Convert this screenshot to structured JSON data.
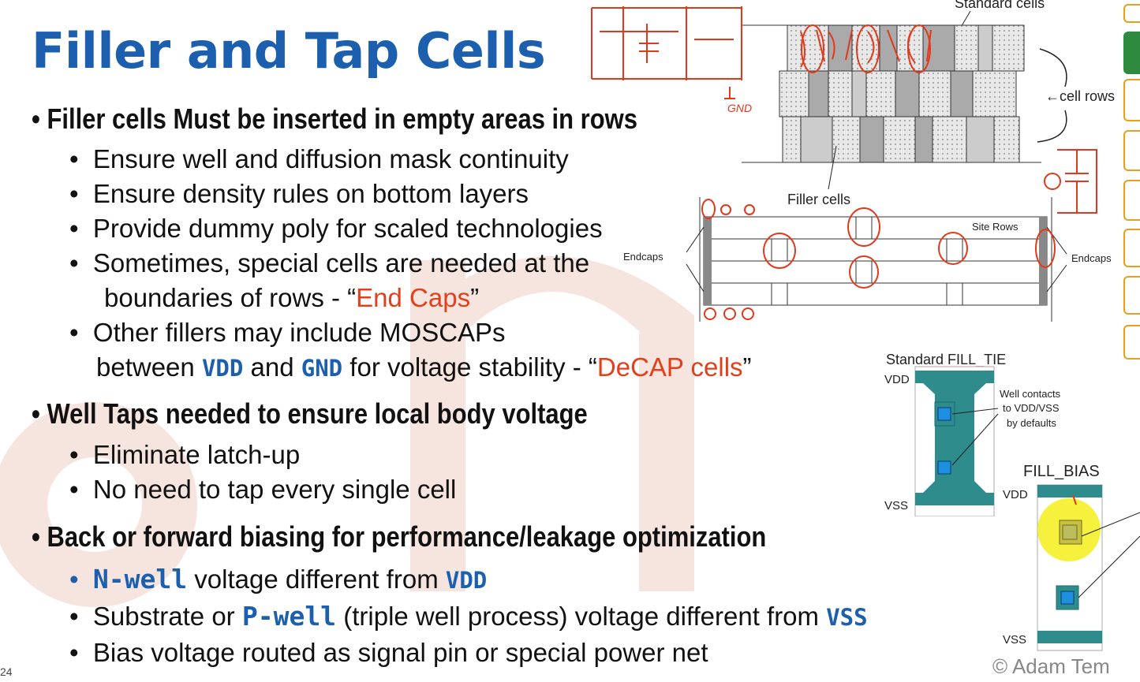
{
  "slide": {
    "title": "Filler and Tap Cells",
    "number": "24",
    "copyright": "© Adam Tem"
  },
  "bullets": {
    "filler_heading": "Filler cells Must be inserted in empty areas in rows",
    "filler_items": [
      "Ensure well and diffusion mask continuity",
      "Ensure density rules on bottom layers",
      "Provide dummy poly for scaled technologies",
      "Sometimes, special cells are needed at the",
      "boundaries of rows - “",
      "End Caps",
      "”",
      "Other fillers may include MOSCAPs",
      "between ",
      "VDD",
      " and ",
      "GND",
      " for voltage stability - “",
      "DeCAP cells",
      "”"
    ],
    "tap_heading": "Well Taps needed to ensure local body voltage",
    "tap_items": [
      "Eliminate latch-up",
      "No need to tap every single cell"
    ],
    "bias_heading": "Back or forward biasing for performance/leakage optimization",
    "bias_items": {
      "nwell": "N-well",
      "nwell_rest": " voltage different from ",
      "nwell_vdd": "VDD",
      "sub_start": "Substrate or ",
      "pwell": "P-well",
      "sub_rest": "  (triple well process) voltage different from ",
      "vss": "VSS",
      "bias_route": "Bias voltage routed as signal pin or special power net"
    }
  },
  "figure_rows": {
    "standard_cells": "Standard cells",
    "cell_rows": "←cell rows",
    "filler_cells": "Filler cells"
  },
  "figure_sites": {
    "site_rows": "Site Rows",
    "endcaps_left": "Endcaps",
    "endcaps_right": "Endcaps"
  },
  "figure_fill": {
    "title": "Standard FILL_TIE",
    "vdd": "VDD",
    "vss": "VSS",
    "well_contacts_1": "Well contacts",
    "well_contacts_2": "to VDD/VSS",
    "well_contacts_3": "by defaults",
    "bias_title": "FILL_BIAS",
    "bias_vdd": "VDD",
    "bias_vss": "VSS"
  },
  "annotation": {
    "gnd": "GND"
  },
  "colors": {
    "title_blue": "#1b5fae",
    "accent_red": "#e2401c",
    "ink_red": "#e0391c",
    "teal": "#2e8c8c",
    "contact_blue": "#1f8fe0"
  }
}
